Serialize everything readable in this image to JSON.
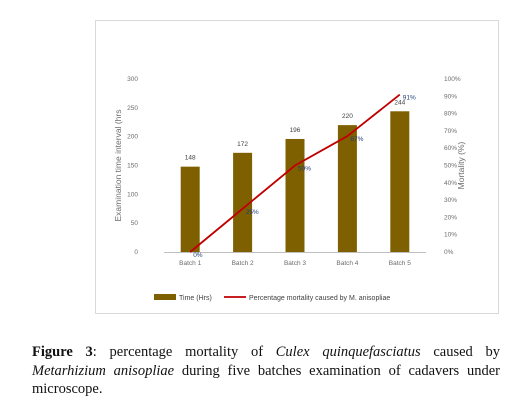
{
  "chart_data": {
    "type": "bar+line",
    "categories": [
      "Batch 1",
      "Batch 2",
      "Batch 3",
      "Batch 4",
      "Batch 5"
    ],
    "series": [
      {
        "name": "Time (Hrs)",
        "type": "bar",
        "axis": "left",
        "values": [
          148,
          172,
          196,
          220,
          244
        ],
        "labels": [
          "148",
          "172",
          "196",
          "220",
          "244"
        ],
        "color": "#7f6000"
      },
      {
        "name": "Percentage  mortality caused by M. anisopliae",
        "type": "line",
        "axis": "right",
        "values": [
          0,
          25,
          50,
          67,
          91
        ],
        "labels": [
          "0%",
          "25%",
          "50%",
          "67%",
          "91%"
        ],
        "color": "#c00000"
      }
    ],
    "ylabel": "Examination time interval (hrs",
    "y2label": "Mortality (%)",
    "ylim": [
      0,
      300
    ],
    "y2lim": [
      0,
      100
    ],
    "yticks": [
      "0",
      "50",
      "100",
      "150",
      "200",
      "250",
      "300"
    ],
    "y2ticks": [
      "0%",
      "10%",
      "20%",
      "30%",
      "40%",
      "50%",
      "60%",
      "70%",
      "80%",
      "90%",
      "100%"
    ],
    "grid": false,
    "legend": "bottom"
  },
  "caption": {
    "label": "Figure 3",
    "parts": [
      {
        "text": ": percentage mortality of ",
        "italic": false
      },
      {
        "text": "Culex quinquefasciatus",
        "italic": true
      },
      {
        "text": " caused by ",
        "italic": false
      },
      {
        "text": "Metarhizium anisopliae",
        "italic": true
      },
      {
        "text": " during five batches examination of cadavers under microscope.",
        "italic": false
      }
    ]
  }
}
